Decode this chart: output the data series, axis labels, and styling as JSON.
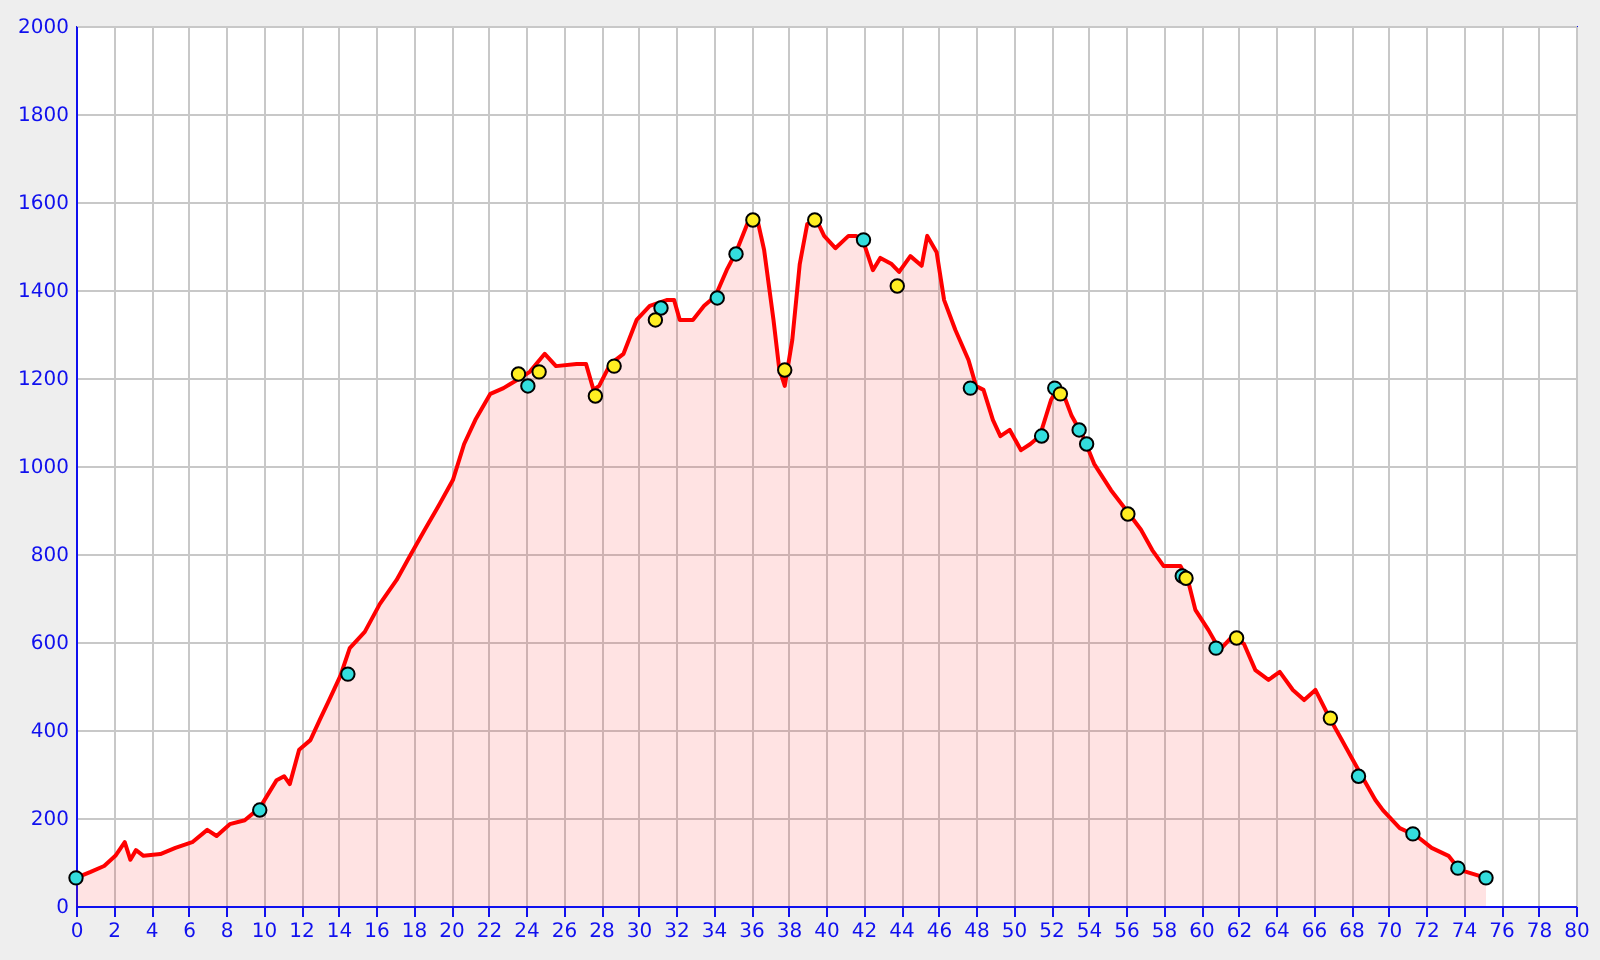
{
  "chart_data": {
    "type": "area",
    "xlim": [
      0,
      80
    ],
    "xticks": [
      0,
      2,
      4,
      6,
      8,
      10,
      12,
      14,
      16,
      18,
      20,
      22,
      24,
      26,
      28,
      30,
      32,
      34,
      36,
      38,
      40,
      42,
      44,
      46,
      48,
      50,
      52,
      54,
      56,
      58,
      60,
      62,
      64,
      66,
      68,
      70,
      72,
      74,
      76,
      78,
      80
    ],
    "ylim": [
      0,
      2000
    ],
    "yticks": [
      0,
      200,
      400,
      600,
      800,
      1000,
      1200,
      1400,
      1600,
      1800,
      2000
    ],
    "grid": true,
    "series": [
      {
        "color": "#ff0000",
        "x": [
          0,
          0.75,
          1.5,
          2.1,
          2.6,
          2.9,
          3.2,
          3.6,
          4.5,
          5.3,
          6.2,
          7.0,
          7.5,
          8.2,
          9.0,
          9.8,
          10.7,
          11.1,
          11.4,
          11.9,
          12.5,
          13.0,
          13.5,
          14.1,
          14.6,
          15.4,
          16.2,
          17.1,
          17.8,
          18.6,
          19.4,
          20.1,
          20.7,
          21.3,
          22.1,
          22.8,
          23.5,
          24.2,
          25.0,
          25.6,
          26.7,
          27.2,
          27.6,
          27.9,
          28.5,
          29.2,
          29.9,
          30.6,
          31.5,
          31.9,
          32.2,
          32.9,
          33.5,
          34.1,
          34.7,
          35.2,
          35.8,
          36.3,
          36.7,
          37.2,
          37.5,
          37.8,
          38.2,
          38.6,
          39.0,
          39.5,
          39.9,
          40.5,
          41.2,
          41.6,
          42.0,
          42.5,
          42.9,
          43.5,
          43.9,
          44.5,
          45.1,
          45.4,
          45.9,
          46.3,
          46.9,
          47.6,
          48.0,
          48.4,
          48.9,
          49.3,
          49.8,
          50.4,
          50.9,
          51.4,
          52.0,
          52.3,
          52.7,
          53.1,
          53.7,
          54.3,
          55.2,
          56.1,
          56.8,
          57.4,
          58.0,
          58.9,
          59.3,
          59.7,
          60.4,
          61.0,
          61.7,
          62.3,
          62.9,
          63.6,
          64.2,
          64.9,
          65.5,
          66.1,
          66.8,
          67.4,
          68.1,
          68.7,
          69.3,
          69.7,
          70.6,
          71.5,
          72.3,
          73.2,
          73.8,
          74.5,
          75.2
        ],
        "values": [
          64,
          77,
          91,
          114,
          145,
          105,
          127,
          114,
          118,
          132,
          145,
          173,
          159,
          186,
          195,
          223,
          286,
          295,
          277,
          355,
          377,
          423,
          468,
          523,
          586,
          623,
          686,
          741,
          795,
          855,
          914,
          968,
          1050,
          1105,
          1164,
          1177,
          1195,
          1214,
          1255,
          1227,
          1232,
          1232,
          1173,
          1182,
          1232,
          1255,
          1332,
          1364,
          1377,
          1377,
          1332,
          1332,
          1364,
          1386,
          1445,
          1486,
          1550,
          1568,
          1491,
          1332,
          1223,
          1182,
          1286,
          1459,
          1550,
          1559,
          1523,
          1495,
          1523,
          1523,
          1509,
          1445,
          1473,
          1459,
          1441,
          1477,
          1455,
          1523,
          1486,
          1377,
          1309,
          1241,
          1182,
          1173,
          1105,
          1068,
          1082,
          1036,
          1050,
          1068,
          1150,
          1173,
          1159,
          1114,
          1068,
          1005,
          945,
          895,
          855,
          809,
          773,
          773,
          741,
          673,
          627,
          582,
          614,
          595,
          536,
          514,
          532,
          491,
          468,
          491,
          432,
          386,
          332,
          286,
          241,
          218,
          177,
          159,
          132,
          114,
          82,
          73,
          64
        ]
      },
      {
        "type": "scatter",
        "color": "#33dddd",
        "marker": "circle",
        "x": [
          0,
          9.8,
          14.5,
          24.1,
          31.2,
          34.2,
          35.2,
          42.0,
          47.7,
          51.5,
          52.2,
          53.5,
          53.9,
          59.0,
          60.8,
          68.4,
          71.3,
          73.7,
          75.2
        ],
        "values": [
          64,
          218,
          527,
          1182,
          1359,
          1382,
          1482,
          1514,
          1177,
          1068,
          1177,
          1082,
          1050,
          750,
          586,
          295,
          164,
          86,
          64
        ]
      },
      {
        "type": "scatter",
        "color": "#ffee22",
        "marker": "circle",
        "x": [
          23.6,
          24.7,
          27.7,
          28.7,
          30.9,
          36.1,
          37.8,
          39.4,
          43.8,
          52.5,
          56.1,
          59.2,
          61.9,
          66.9
        ],
        "values": [
          1209,
          1214,
          1159,
          1227,
          1332,
          1559,
          1218,
          1559,
          1409,
          1164,
          891,
          745,
          609,
          427
        ]
      }
    ]
  }
}
